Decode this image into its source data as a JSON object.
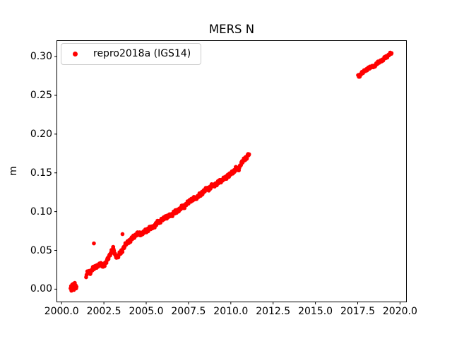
{
  "chart_data": {
    "type": "scatter",
    "title": "MERS N",
    "xlabel": "",
    "ylabel": "m",
    "grid": false,
    "xlim": [
      1999.72,
      2020.38
    ],
    "ylim": [
      -0.0165,
      0.3206
    ],
    "x_ticks": [
      2000.0,
      2002.5,
      2005.0,
      2007.5,
      2010.0,
      2012.5,
      2015.0,
      2017.5,
      2020.0
    ],
    "x_tick_labels": [
      "2000.0",
      "2002.5",
      "2005.0",
      "2007.5",
      "2010.0",
      "2012.5",
      "2015.0",
      "2017.5",
      "2020.0"
    ],
    "y_ticks": [
      0.0,
      0.05,
      0.1,
      0.15,
      0.2,
      0.25,
      0.3
    ],
    "y_tick_labels": [
      "0.00",
      "0.05",
      "0.10",
      "0.15",
      "0.20",
      "0.25",
      "0.30"
    ],
    "legend": {
      "position": "upper left",
      "entries": [
        {
          "label": "repro2018a (IGS14)",
          "color": "#ff0000",
          "marker": "dot"
        }
      ]
    },
    "series": [
      {
        "name": "repro2018a (IGS14)",
        "color": "#ff0000",
        "marker": "dot",
        "marker_diameter_px": 5.6,
        "segments": [
          {
            "id": "initial-cluster-2000",
            "render": "points",
            "points": [
              [
                2000.53,
                0.001
              ],
              [
                2000.56,
                0.004
              ],
              [
                2000.58,
                -0.002
              ],
              [
                2000.61,
                0.002
              ],
              [
                2000.63,
                0.006
              ],
              [
                2000.66,
                0.0
              ],
              [
                2000.68,
                0.003
              ],
              [
                2000.71,
                0.007
              ],
              [
                2000.73,
                -0.001
              ],
              [
                2000.76,
                0.004
              ],
              [
                2000.78,
                0.008
              ],
              [
                2000.81,
                0.002
              ],
              [
                2000.83,
                0.005
              ],
              [
                2000.86,
                0.001
              ],
              [
                2000.88,
                0.003
              ]
            ]
          },
          {
            "id": "main-trend-2001-2011",
            "render": "dense-band",
            "noise": 0.003,
            "points": [
              [
                2001.45,
                0.018
              ],
              [
                2001.55,
                0.022
              ],
              [
                2001.7,
                0.021
              ],
              [
                2001.85,
                0.028
              ],
              [
                2002.0,
                0.027
              ],
              [
                2002.15,
                0.031
              ],
              [
                2002.3,
                0.033
              ],
              [
                2002.45,
                0.029
              ],
              [
                2002.6,
                0.034
              ],
              [
                2002.75,
                0.039
              ],
              [
                2002.9,
                0.047
              ],
              [
                2003.05,
                0.052
              ],
              [
                2003.2,
                0.042
              ],
              [
                2003.35,
                0.043
              ],
              [
                2003.5,
                0.047
              ],
              [
                2003.65,
                0.053
              ],
              [
                2003.8,
                0.058
              ],
              [
                2003.95,
                0.061
              ],
              [
                2004.1,
                0.064
              ],
              [
                2004.3,
                0.068
              ],
              [
                2004.5,
                0.072
              ],
              [
                2004.7,
                0.071
              ],
              [
                2004.9,
                0.074
              ],
              [
                2005.1,
                0.077
              ],
              [
                2005.3,
                0.079
              ],
              [
                2005.5,
                0.082
              ],
              [
                2005.7,
                0.086
              ],
              [
                2005.9,
                0.089
              ],
              [
                2006.1,
                0.092
              ],
              [
                2006.3,
                0.094
              ],
              [
                2006.5,
                0.096
              ],
              [
                2006.7,
                0.099
              ],
              [
                2006.9,
                0.102
              ],
              [
                2007.1,
                0.105
              ],
              [
                2007.3,
                0.108
              ],
              [
                2007.5,
                0.112
              ],
              [
                2007.7,
                0.116
              ],
              [
                2007.9,
                0.117
              ],
              [
                2008.1,
                0.12
              ],
              [
                2008.3,
                0.124
              ],
              [
                2008.5,
                0.128
              ],
              [
                2008.7,
                0.13
              ],
              [
                2008.9,
                0.133
              ],
              [
                2009.1,
                0.135
              ],
              [
                2009.3,
                0.138
              ],
              [
                2009.5,
                0.141
              ],
              [
                2009.7,
                0.144
              ],
              [
                2009.9,
                0.147
              ],
              [
                2010.1,
                0.151
              ],
              [
                2010.3,
                0.155
              ],
              [
                2010.45,
                0.154
              ],
              [
                2010.6,
                0.162
              ],
              [
                2010.8,
                0.167
              ],
              [
                2010.95,
                0.171
              ],
              [
                2011.08,
                0.174
              ]
            ]
          },
          {
            "id": "outliers",
            "render": "points",
            "points": [
              [
                2001.91,
                0.059
              ],
              [
                2003.6,
                0.071
              ]
            ]
          },
          {
            "id": "post-gap-trend-2017-2019",
            "render": "dense-band",
            "noise": 0.002,
            "points": [
              [
                2017.52,
                0.2755
              ],
              [
                2017.62,
                0.274
              ],
              [
                2017.72,
                0.279
              ],
              [
                2017.85,
                0.281
              ],
              [
                2018.0,
                0.2825
              ],
              [
                2018.1,
                0.2845
              ],
              [
                2018.25,
                0.2865
              ],
              [
                2018.4,
                0.287
              ],
              [
                2018.55,
                0.289
              ],
              [
                2018.7,
                0.292
              ],
              [
                2018.85,
                0.2945
              ],
              [
                2019.0,
                0.296
              ],
              [
                2019.15,
                0.299
              ],
              [
                2019.3,
                0.3015
              ],
              [
                2019.42,
                0.3035
              ],
              [
                2019.5,
                0.3045
              ]
            ]
          }
        ]
      }
    ]
  }
}
